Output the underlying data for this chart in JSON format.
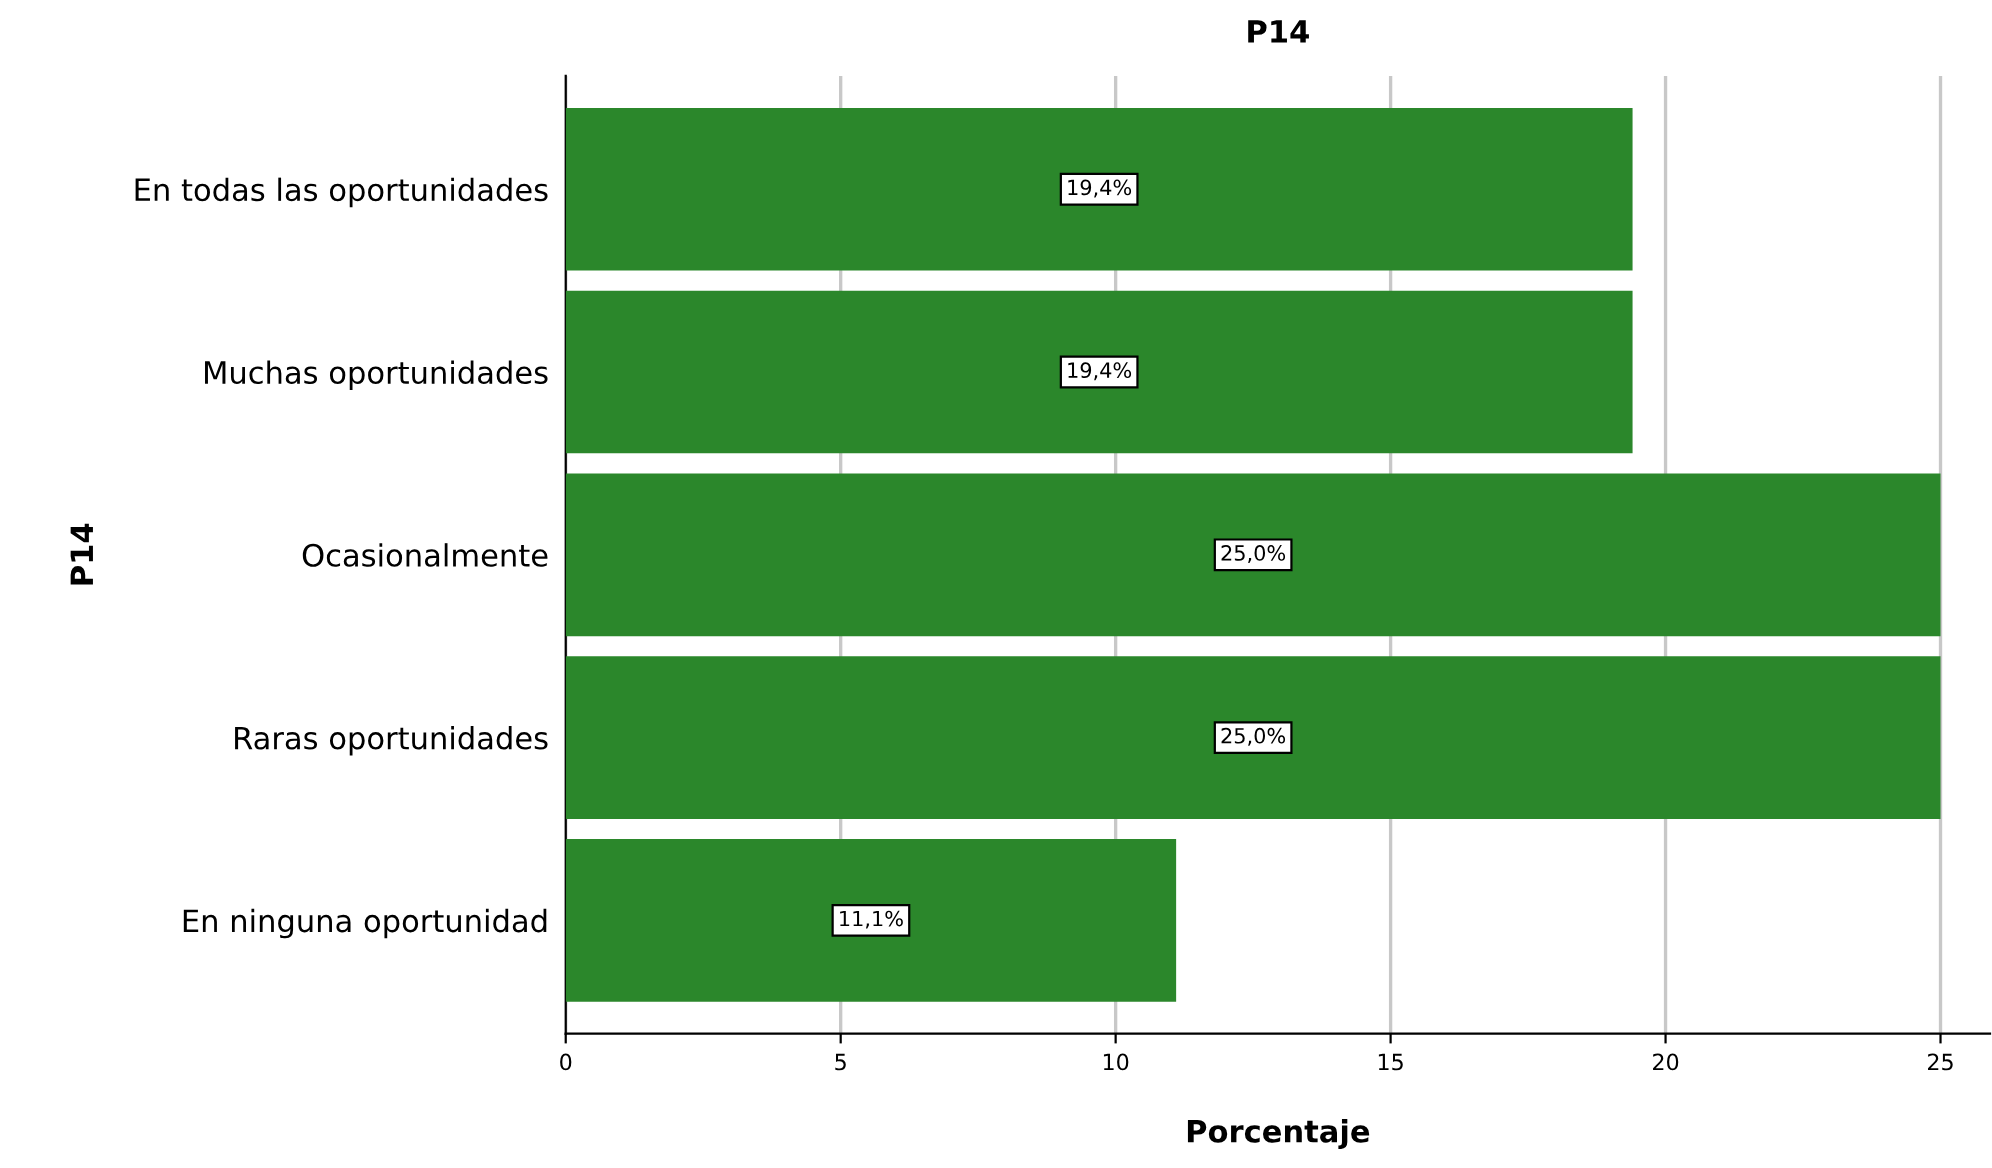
{
  "chart_data": {
    "type": "bar",
    "orientation": "horizontal",
    "title": "P14",
    "xlabel": "Porcentaje",
    "ylabel": "P14",
    "categories": [
      "En todas las oportunidades",
      "Muchas oportunidades",
      "Ocasionalmente",
      "Raras oportunidades",
      "En ninguna oportunidad"
    ],
    "values": [
      19.4,
      19.4,
      25.0,
      25.0,
      11.1
    ],
    "value_labels": [
      "19,4%",
      "19,4%",
      "25,0%",
      "25,0%",
      "11,1%"
    ],
    "color": "#2b872b",
    "xlim": [
      0,
      25.9
    ],
    "xticks": [
      0,
      5,
      10,
      15,
      20,
      25
    ],
    "grid": "x"
  }
}
